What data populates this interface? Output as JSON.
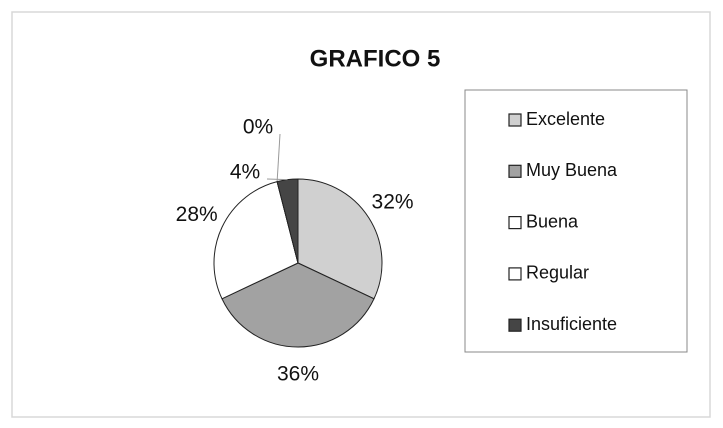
{
  "chart_data": {
    "type": "pie",
    "title": "GRAFICO 5",
    "categories": [
      "Excelente",
      "Muy Buena",
      "Buena",
      "Regular",
      "Insuficiente"
    ],
    "values": [
      32,
      36,
      28,
      0,
      4
    ],
    "value_labels": [
      "32%",
      "36%",
      "28%",
      "0%",
      "4%"
    ],
    "colors": [
      "#d0d0d0",
      "#a2a2a2",
      "#ffffff",
      "#ffffff",
      "#454545"
    ],
    "legend": "right"
  }
}
